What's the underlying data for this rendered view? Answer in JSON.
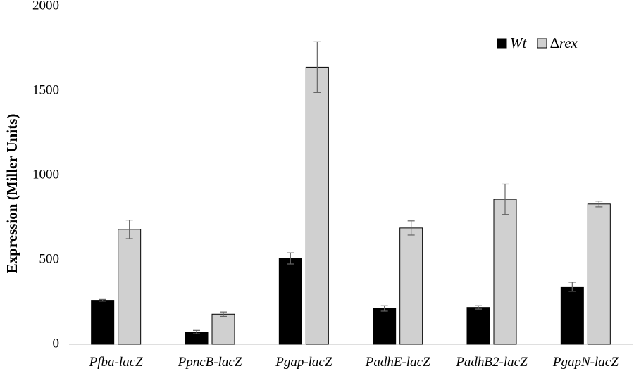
{
  "chart_data": {
    "type": "bar",
    "categories": [
      "Pfba-lacZ",
      "PpncB-lacZ",
      "Pgap-lacZ",
      "PadhE-lacZ",
      "PadhB2-lacZ",
      "PgapN-lacZ"
    ],
    "series": [
      {
        "name": "Wt",
        "color": "#000000",
        "values": [
          260,
          72,
          508,
          212,
          218,
          340
        ],
        "errors": [
          5,
          10,
          33,
          16,
          10,
          27
        ]
      },
      {
        "name": "∆rex",
        "color": "#d0d0d0",
        "values": [
          680,
          178,
          1640,
          688,
          858,
          830
        ],
        "errors": [
          55,
          13,
          150,
          42,
          90,
          17
        ]
      }
    ],
    "title": "",
    "xlabel": "",
    "ylabel": "Expression (Miller Units)",
    "ylim": [
      0,
      2000
    ],
    "yticks": [
      0,
      500,
      1000,
      1500,
      2000
    ],
    "grid": false,
    "legend_position": "top-right"
  }
}
